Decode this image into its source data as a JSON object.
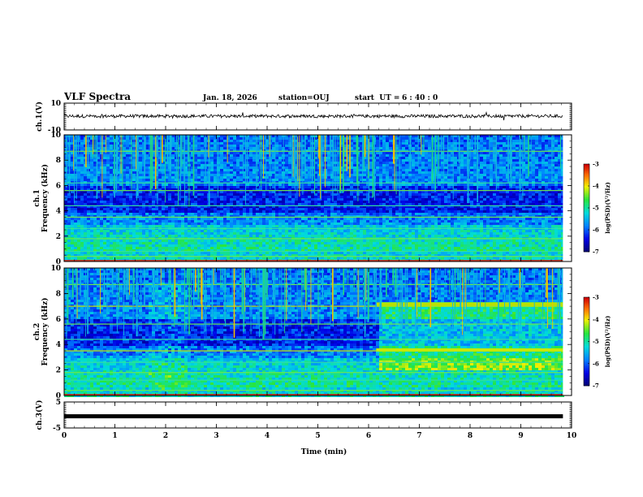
{
  "header": {
    "title": "VLF Spectra",
    "date": "Jan. 18, 2026",
    "station": "station=OUJ",
    "start_label": "start  UT =",
    "start_value": "6 : 40 : 0"
  },
  "chart_data": {
    "type": "heatmap",
    "x_axis": {
      "label": "Time (min)",
      "range": [
        0,
        10
      ],
      "ticks": [
        "0",
        "1",
        "2",
        "3",
        "4",
        "5",
        "6",
        "7",
        "8",
        "9",
        "10"
      ],
      "data_end": 9.83
    },
    "panels": [
      {
        "id": "ch1-waveform",
        "kind": "waveform",
        "ylabel": "ch.1(V)",
        "yrange": [
          -10,
          10
        ],
        "ytick_labels": [
          "10",
          "-10"
        ],
        "baseline": 0.3,
        "amplitude": 1.2
      },
      {
        "id": "ch1-spectrogram",
        "kind": "spectrogram",
        "ylabel_channel": "ch.1",
        "ylabel": "Frequency (kHz)",
        "yrange": [
          0,
          10
        ],
        "ytick_labels": [
          "0",
          "2",
          "4",
          "6",
          "8",
          "10"
        ],
        "colorbar": {
          "label": "log(PSD)(V²/Hz)",
          "range": [
            -7,
            -3
          ],
          "tick_labels": [
            "-3",
            "-4",
            "-5",
            "-6",
            "-7"
          ]
        },
        "features": "broadband impulsive noise spikes from 6 to 10 kHz across the whole interval; horizontal narrowband lines near 0.4, 1.8, 2.6, 3.5 and 4.4 kHz; enhanced background between 1 and 3 kHz"
      },
      {
        "id": "ch2-spectrogram",
        "kind": "spectrogram",
        "ylabel_channel": "ch.2",
        "ylabel": "Frequency (kHz)",
        "yrange": [
          0,
          10
        ],
        "ytick_labels": [
          "0",
          "2",
          "4",
          "6",
          "8",
          "10"
        ],
        "colorbar": {
          "label": "log(PSD)(V²/Hz)",
          "range": [
            -7,
            -3
          ],
          "tick_labels": [
            "-3",
            "-4",
            "-5",
            "-6",
            "-7"
          ]
        },
        "features": "impulsive noise spikes in the upper band; disturbance near 2 min; strong enhancement from about 6.15 min onward between 2 and 7.5 kHz with bright bands near 3.5 and 7 kHz"
      },
      {
        "id": "ch3-waveform",
        "kind": "waveform",
        "ylabel": "ch.3(V)",
        "yrange": [
          -5,
          5
        ],
        "ytick_labels": [
          "5",
          "-5"
        ],
        "constant_value": -0.5
      }
    ]
  }
}
